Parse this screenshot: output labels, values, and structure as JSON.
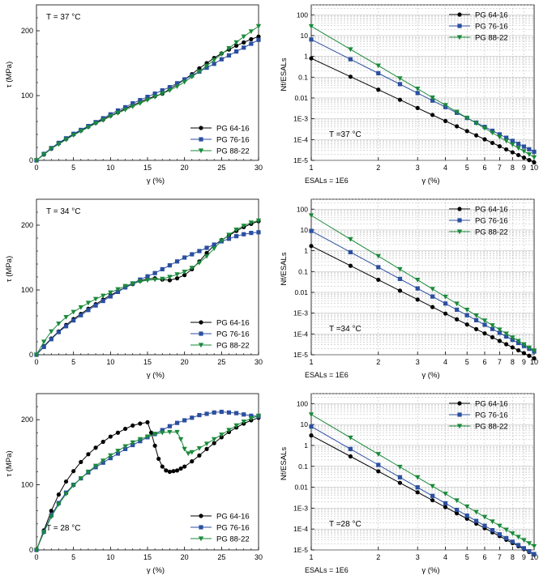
{
  "colors": {
    "pg64": "#000000",
    "pg76": "#2b4fa0",
    "pg88": "#1a8a3a"
  },
  "series_names": [
    "PG 64-16",
    "PG 76-16",
    "PG 88-22"
  ],
  "chart_data": [
    {
      "type": "line",
      "panel": "shear-37",
      "annotation": "T = 37 °C",
      "xlabel": "γ (%)",
      "ylabel": "τ (MPa)",
      "xlim": [
        0,
        30
      ],
      "ylim": [
        0,
        240
      ],
      "xticks": [
        0,
        5,
        10,
        15,
        20,
        25,
        30
      ],
      "yticks": [
        0,
        100,
        200
      ],
      "legend": "bottom-right",
      "series": [
        {
          "name": "PG 64-16",
          "marker": "circle",
          "x": [
            0,
            1,
            2,
            3,
            4,
            5,
            6,
            7,
            8,
            9,
            10,
            11,
            12,
            13,
            14,
            15,
            16,
            17,
            18,
            19,
            20,
            21,
            22,
            23,
            24,
            25,
            26,
            27,
            28,
            29,
            30
          ],
          "y": [
            0,
            9,
            18,
            26,
            33,
            40,
            46,
            52,
            58,
            63,
            69,
            74,
            80,
            85,
            90,
            95,
            99,
            103,
            110,
            117,
            125,
            133,
            142,
            150,
            158,
            165,
            171,
            177,
            182,
            187,
            191
          ]
        },
        {
          "name": "PG 76-16",
          "marker": "square",
          "x": [
            0,
            1,
            2,
            3,
            4,
            5,
            6,
            7,
            8,
            9,
            10,
            11,
            12,
            13,
            14,
            15,
            16,
            17,
            18,
            19,
            20,
            21,
            22,
            23,
            24,
            25,
            26,
            27,
            28,
            29,
            30
          ],
          "y": [
            0,
            10,
            19,
            27,
            34,
            41,
            47,
            53,
            59,
            65,
            71,
            77,
            82,
            88,
            93,
            98,
            103,
            108,
            113,
            119,
            125,
            131,
            137,
            143,
            149,
            156,
            162,
            168,
            174,
            180,
            186
          ]
        },
        {
          "name": "PG 88-22",
          "marker": "triangle",
          "x": [
            0,
            1,
            2,
            3,
            4,
            5,
            6,
            7,
            8,
            9,
            10,
            11,
            12,
            13,
            14,
            15,
            16,
            17,
            18,
            19,
            20,
            21,
            22,
            23,
            24,
            25,
            26,
            27,
            28,
            29,
            30
          ],
          "y": [
            0,
            9,
            18,
            25,
            32,
            39,
            45,
            51,
            57,
            62,
            68,
            73,
            78,
            83,
            88,
            93,
            98,
            103,
            108,
            114,
            121,
            129,
            137,
            146,
            155,
            164,
            173,
            182,
            191,
            199,
            207
          ]
        }
      ]
    },
    {
      "type": "line",
      "panel": "fatigue-37",
      "annotation": "T =37 °C",
      "note": "ESALs = 1E6",
      "xlabel": "γ (%)",
      "ylabel": "Nf/ESALs",
      "xscale": "log",
      "yscale": "log",
      "xlim": [
        1,
        10
      ],
      "ylim": [
        1e-05,
        300
      ],
      "xticks": [
        1,
        2,
        3,
        4,
        5,
        6,
        7,
        8,
        9,
        10
      ],
      "yticks": [
        "1E-5",
        "1E-4",
        "1E-3",
        "0.01",
        "0.1",
        "1",
        "10",
        "100"
      ],
      "legend": "top-right",
      "series": [
        {
          "name": "PG 64-16",
          "marker": "circle",
          "x": [
            1,
            1.5,
            2,
            2.5,
            3,
            3.5,
            4,
            4.5,
            5,
            5.5,
            6,
            6.5,
            7,
            7.5,
            8,
            8.5,
            9,
            9.5,
            10
          ],
          "exponent": -5.0,
          "y_at_1": 0.8
        },
        {
          "name": "PG 76-16",
          "marker": "square",
          "x": [
            1,
            1.5,
            2,
            2.5,
            3,
            3.5,
            4,
            4.5,
            5,
            5.5,
            6,
            6.5,
            7,
            7.5,
            8,
            8.5,
            9,
            9.5,
            10
          ],
          "exponent": -5.4,
          "y_at_1": 6.5
        },
        {
          "name": "PG 88-22",
          "marker": "triangle",
          "x": [
            1,
            1.5,
            2,
            2.5,
            3,
            3.5,
            4,
            4.5,
            5,
            5.5,
            6,
            6.5,
            7,
            7.5,
            8,
            8.5,
            9,
            9.5,
            10
          ],
          "exponent": -6.3,
          "y_at_1": 28
        }
      ]
    },
    {
      "type": "line",
      "panel": "shear-34",
      "annotation": "T = 34 °C",
      "xlabel": "γ (%)",
      "ylabel": "τ (MPa)",
      "xlim": [
        0,
        30
      ],
      "ylim": [
        0,
        240
      ],
      "xticks": [
        0,
        5,
        10,
        15,
        20,
        25,
        30
      ],
      "yticks": [
        0,
        100,
        200
      ],
      "legend": "bottom-right",
      "series": [
        {
          "name": "PG 64-16",
          "marker": "circle",
          "x": [
            0,
            1,
            2,
            3,
            4,
            5,
            6,
            7,
            8,
            9,
            10,
            11,
            12,
            13,
            14,
            15,
            16,
            17,
            18,
            19,
            20,
            21,
            22,
            23,
            24,
            25,
            26,
            27,
            28,
            29,
            30
          ],
          "y": [
            0,
            13,
            25,
            36,
            46,
            55,
            63,
            71,
            78,
            85,
            92,
            98,
            104,
            109,
            114,
            117,
            118,
            116,
            115,
            118,
            123,
            132,
            144,
            157,
            169,
            177,
            184,
            191,
            197,
            202,
            206
          ]
        },
        {
          "name": "PG 76-16",
          "marker": "square",
          "x": [
            0,
            1,
            2,
            3,
            4,
            5,
            6,
            7,
            8,
            9,
            10,
            11,
            12,
            13,
            14,
            15,
            16,
            17,
            18,
            19,
            20,
            21,
            22,
            23,
            24,
            25,
            26,
            27,
            28,
            29,
            30
          ],
          "y": [
            0,
            12,
            24,
            35,
            44,
            53,
            61,
            69,
            76,
            83,
            90,
            97,
            104,
            110,
            116,
            121,
            126,
            132,
            138,
            144,
            150,
            155,
            160,
            165,
            170,
            175,
            179,
            183,
            186,
            188,
            189
          ]
        },
        {
          "name": "PG 88-22",
          "marker": "triangle",
          "x": [
            0,
            1,
            2,
            3,
            4,
            5,
            6,
            7,
            8,
            9,
            10,
            11,
            12,
            13,
            14,
            15,
            16,
            17,
            18,
            19,
            20,
            21,
            22,
            23,
            24,
            25,
            26,
            27,
            28,
            29,
            30
          ],
          "y": [
            0,
            20,
            36,
            48,
            58,
            66,
            73,
            80,
            86,
            91,
            96,
            101,
            106,
            110,
            113,
            115,
            116,
            117,
            120,
            124,
            128,
            134,
            142,
            152,
            164,
            176,
            185,
            193,
            199,
            204,
            207
          ]
        }
      ]
    },
    {
      "type": "line",
      "panel": "fatigue-34",
      "annotation": "T =34 °C",
      "note": "ESALs = 1E6",
      "xlabel": "γ (%)",
      "ylabel": "Nf/ESALs",
      "xscale": "log",
      "yscale": "log",
      "xlim": [
        1,
        10
      ],
      "ylim": [
        1e-05,
        300
      ],
      "xticks": [
        1,
        2,
        3,
        4,
        5,
        6,
        7,
        8,
        9,
        10
      ],
      "yticks": [
        "1E-5",
        "1E-4",
        "1E-3",
        "0.01",
        "0.1",
        "1",
        "10",
        "100"
      ],
      "legend": "top-right",
      "series": [
        {
          "name": "PG 64-16",
          "marker": "circle",
          "x": [
            1,
            1.5,
            2,
            2.5,
            3,
            3.5,
            4,
            4.5,
            5,
            5.5,
            6,
            6.5,
            7,
            7.5,
            8,
            8.5,
            9,
            9.5,
            10
          ],
          "exponent": -5.4,
          "y_at_1": 1.7
        },
        {
          "name": "PG 76-16",
          "marker": "square",
          "x": [
            1,
            1.5,
            2,
            2.5,
            3,
            3.5,
            4,
            4.5,
            5,
            5.5,
            6,
            6.5,
            7,
            7.5,
            8,
            8.5,
            9,
            9.5,
            10
          ],
          "exponent": -5.8,
          "y_at_1": 9
        },
        {
          "name": "PG 88-22",
          "marker": "triangle",
          "x": [
            1,
            1.5,
            2,
            2.5,
            3,
            3.5,
            4,
            4.5,
            5,
            5.5,
            6,
            6.5,
            7,
            7.5,
            8,
            8.5,
            9,
            9.5,
            10
          ],
          "exponent": -6.5,
          "y_at_1": 50
        }
      ]
    },
    {
      "type": "line",
      "panel": "shear-28",
      "annotation": "T = 28 °C",
      "xlabel": "γ (%)",
      "ylabel": "τ (MPa)",
      "xlim": [
        0,
        30
      ],
      "ylim": [
        0,
        240
      ],
      "xticks": [
        0,
        5,
        10,
        15,
        20,
        25,
        30
      ],
      "yticks": [
        0,
        100,
        200
      ],
      "legend": "bottom-right",
      "series": [
        {
          "name": "PG 64-16",
          "marker": "circle",
          "x": [
            0,
            1,
            2,
            3,
            4,
            5,
            6,
            7,
            8,
            9,
            10,
            11,
            12,
            13,
            14,
            15,
            15.5,
            16,
            16.5,
            17,
            17.5,
            18,
            18.5,
            19,
            19.5,
            20,
            21,
            22,
            23,
            24,
            25,
            26,
            27,
            28,
            29,
            30
          ],
          "y": [
            0,
            30,
            60,
            85,
            105,
            121,
            135,
            147,
            157,
            166,
            174,
            180,
            186,
            191,
            194,
            196,
            180,
            160,
            140,
            128,
            122,
            120,
            121,
            122,
            125,
            128,
            136,
            145,
            155,
            164,
            173,
            181,
            188,
            194,
            199,
            203
          ]
        },
        {
          "name": "PG 76-16",
          "marker": "square",
          "x": [
            0,
            1,
            2,
            3,
            4,
            5,
            6,
            7,
            8,
            9,
            10,
            11,
            12,
            13,
            14,
            15,
            16,
            17,
            18,
            19,
            20,
            21,
            22,
            23,
            24,
            25,
            26,
            27,
            28,
            29,
            30
          ],
          "y": [
            0,
            28,
            53,
            72,
            88,
            100,
            110,
            119,
            127,
            134,
            141,
            148,
            155,
            161,
            167,
            173,
            178,
            184,
            190,
            195,
            199,
            203,
            207,
            209,
            211,
            212,
            211,
            210,
            208,
            206,
            205
          ]
        },
        {
          "name": "PG 88-22",
          "marker": "triangle",
          "x": [
            0,
            1,
            2,
            3,
            4,
            5,
            6,
            7,
            8,
            9,
            10,
            11,
            12,
            13,
            14,
            15,
            16,
            17,
            18,
            19,
            19.5,
            20,
            20.5,
            21,
            22,
            23,
            24,
            25,
            26,
            27,
            28,
            29,
            30
          ],
          "y": [
            0,
            27,
            51,
            70,
            86,
            99,
            110,
            120,
            129,
            137,
            145,
            152,
            159,
            165,
            170,
            174,
            178,
            180,
            181,
            181,
            170,
            155,
            148,
            150,
            156,
            163,
            170,
            177,
            184,
            191,
            197,
            202,
            206
          ]
        }
      ]
    },
    {
      "type": "line",
      "panel": "fatigue-28",
      "annotation": "T =28 °C",
      "note": "ESALs = 1E6",
      "xlabel": "γ (%)",
      "ylabel": "Nf/ESALs",
      "xscale": "log",
      "yscale": "log",
      "xlim": [
        1,
        10
      ],
      "ylim": [
        1e-05,
        300
      ],
      "xticks": [
        1,
        2,
        3,
        4,
        5,
        6,
        7,
        8,
        9,
        10
      ],
      "yticks": [
        "1E-5",
        "1E-4",
        "1E-3",
        "0.01",
        "0.1",
        "1",
        "10",
        "100"
      ],
      "legend": "top-right",
      "series": [
        {
          "name": "PG 64-16",
          "marker": "circle",
          "x": [
            1,
            1.5,
            2,
            2.5,
            3,
            3.5,
            4,
            4.5,
            5,
            5.5,
            6,
            6.5,
            7,
            7.5,
            8,
            8.5,
            9,
            9.5,
            10
          ],
          "exponent": -5.7,
          "y_at_1": 3
        },
        {
          "name": "PG 76-16",
          "marker": "square",
          "x": [
            1,
            1.5,
            2,
            2.5,
            3,
            3.5,
            4,
            4.5,
            5,
            5.5,
            6,
            6.5,
            7,
            7.5,
            8,
            8.5,
            9,
            9.5,
            10
          ],
          "exponent": -6.1,
          "y_at_1": 8
        },
        {
          "name": "PG 88-22",
          "marker": "triangle",
          "x": [
            1,
            1.5,
            2,
            2.5,
            3,
            3.5,
            4,
            4.5,
            5,
            5.5,
            6,
            6.5,
            7,
            7.5,
            8,
            8.5,
            9,
            9.5,
            10
          ],
          "exponent": -6.3,
          "y_at_1": 30
        }
      ]
    }
  ]
}
